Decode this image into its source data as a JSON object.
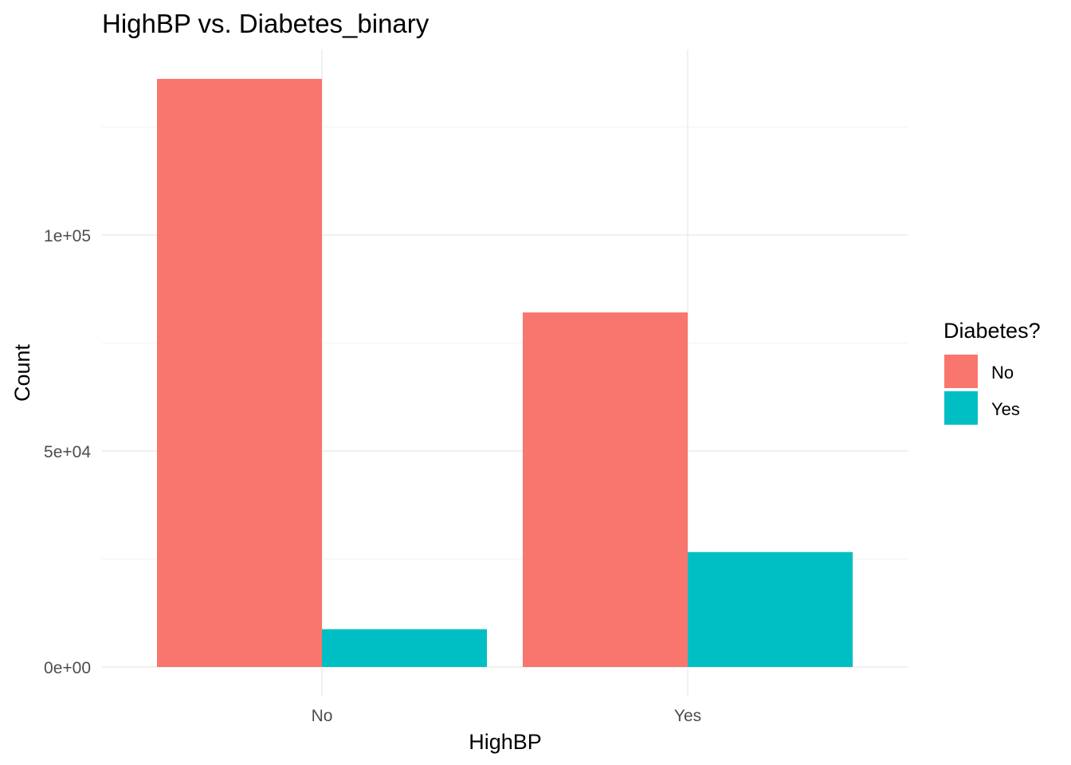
{
  "chart_data": {
    "type": "bar",
    "title": "HighBP vs. Diabetes_binary",
    "xlabel": "HighBP",
    "ylabel": "Count",
    "categories": [
      "No",
      "Yes"
    ],
    "series": [
      {
        "name": "No",
        "color": "#F8766D",
        "values": [
          136100,
          82050
        ]
      },
      {
        "name": "Yes",
        "color": "#00BFC4",
        "values": [
          8750,
          26600
        ]
      }
    ],
    "ylim": [
      0,
      136100
    ],
    "y_ticks": [
      0,
      50000,
      100000
    ],
    "y_tick_labels": [
      "0e+00",
      "5e+04",
      "1e+05"
    ],
    "y_minor_ticks": [
      25000,
      75000,
      125000
    ],
    "grid": true,
    "legend": {
      "title": "Diabetes?",
      "position": "right"
    }
  }
}
